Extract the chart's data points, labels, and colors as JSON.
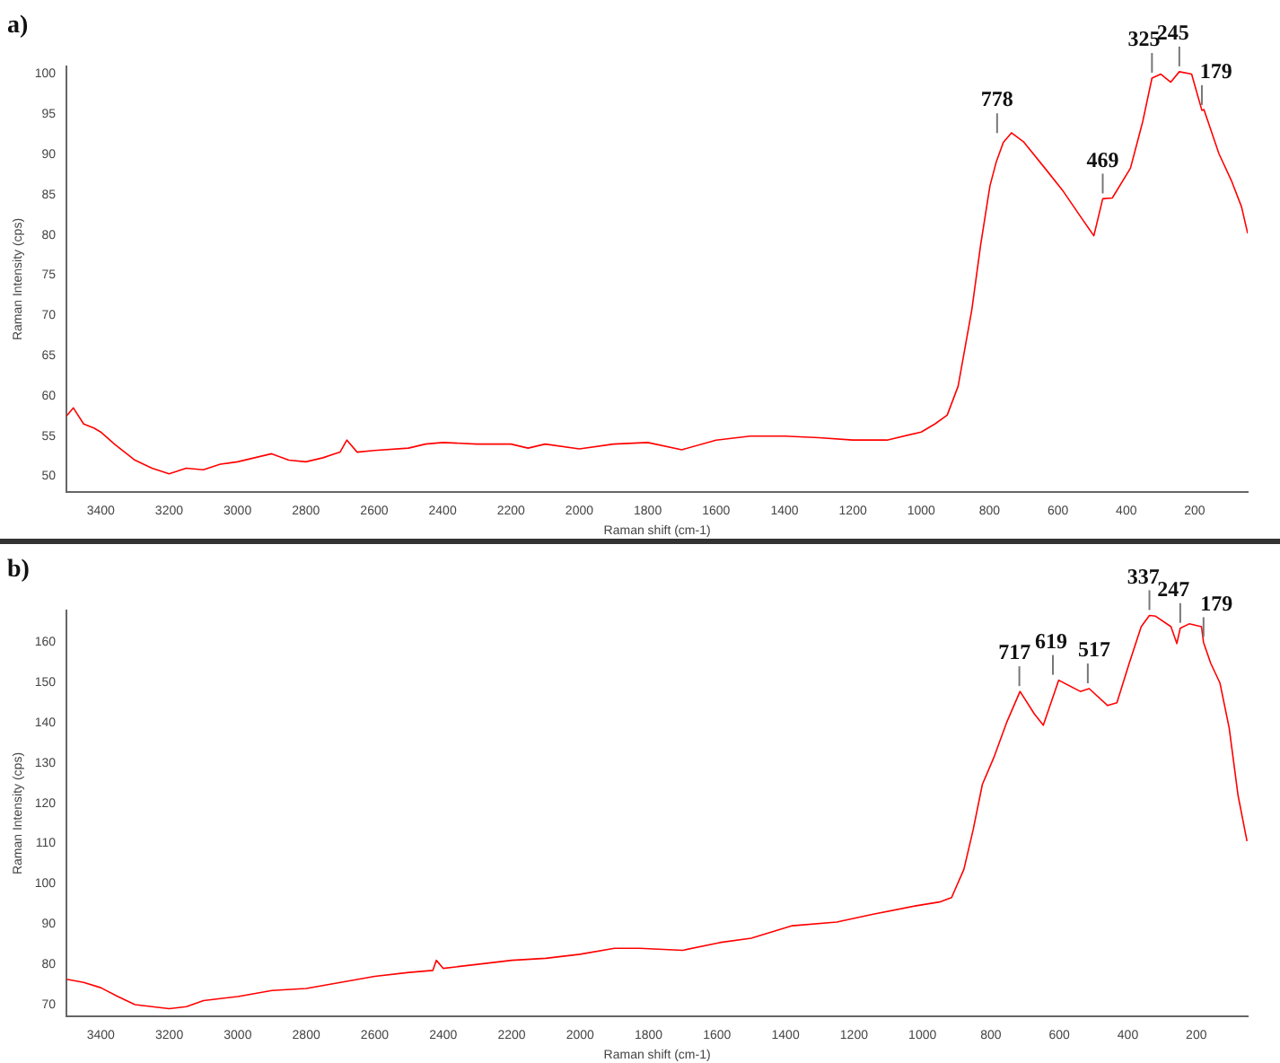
{
  "chart_data": [
    {
      "type": "line",
      "title": "a)",
      "xlabel": "Raman shift (cm-1)",
      "ylabel": "Raman Intensity (cps)",
      "color": "#ff0000",
      "marker": "none",
      "x": [
        3500,
        3480,
        3450,
        3420,
        3400,
        3360,
        3330,
        3300,
        3250,
        3200,
        3150,
        3100,
        3050,
        3000,
        2950,
        2900,
        2850,
        2800,
        2750,
        2700,
        2680,
        2650,
        2600,
        2500,
        2450,
        2400,
        2300,
        2200,
        2150,
        2100,
        2000,
        1900,
        1800,
        1700,
        1600,
        1500,
        1400,
        1300,
        1200,
        1100,
        1000,
        960,
        924,
        892,
        852,
        826,
        799,
        781,
        760,
        736,
        701,
        638,
        584,
        531,
        495,
        469,
        441,
        388,
        352,
        325,
        299,
        270,
        245,
        209,
        179,
        173,
        129,
        93,
        63,
        45
      ],
      "values": [
        57.5,
        58.5,
        56.5,
        56,
        55.5,
        54,
        53,
        52,
        51,
        50.3,
        51,
        50.8,
        51.5,
        51.8,
        52.3,
        52.8,
        52,
        51.8,
        52.3,
        53,
        54.5,
        53,
        53.2,
        53.5,
        54,
        54.2,
        54,
        54,
        53.5,
        54,
        53.4,
        54,
        54.2,
        53.3,
        54.5,
        55,
        55,
        54.8,
        54.5,
        54.5,
        55.5,
        56.5,
        57.6,
        61.2,
        70.7,
        78.8,
        86.1,
        89,
        91.5,
        92.7,
        91.6,
        88.3,
        85.4,
        82.1,
        79.9,
        84.5,
        84.6,
        88.3,
        94.1,
        99.5,
        100,
        99,
        100.3,
        100,
        95.5,
        95.6,
        90.1,
        86.8,
        83.5,
        80.2
      ],
      "xlim": [
        3500,
        45
      ],
      "ylim": [
        48,
        101
      ],
      "xticks": [
        3400,
        3200,
        3000,
        2800,
        2600,
        2400,
        2200,
        2000,
        1800,
        1600,
        1400,
        1200,
        1000,
        800,
        600,
        400,
        200
      ],
      "yticks": [
        50,
        55,
        60,
        65,
        70,
        75,
        80,
        85,
        90,
        95,
        100
      ],
      "annotations": [
        {
          "text": "778",
          "x": 778,
          "y": 92
        },
        {
          "text": "469",
          "x": 469,
          "y": 84.5
        },
        {
          "text": "325",
          "x": 325,
          "y": 99.5
        },
        {
          "text": "245",
          "x": 245,
          "y": 100.3
        },
        {
          "text": "179",
          "x": 179,
          "y": 95.5
        }
      ]
    },
    {
      "type": "line",
      "title": "b)",
      "xlabel": "Raman shift (cm-1)",
      "ylabel": "Raman Intensity (cps)",
      "color": "#ff0000",
      "marker": "none",
      "x": [
        3500,
        3450,
        3400,
        3350,
        3300,
        3250,
        3200,
        3150,
        3100,
        3000,
        2900,
        2800,
        2700,
        2600,
        2500,
        2430,
        2420,
        2400,
        2300,
        2200,
        2100,
        2000,
        1900,
        1826,
        1700,
        1593,
        1500,
        1380,
        1250,
        1147,
        1022,
        950,
        915,
        879,
        852,
        825,
        790,
        754,
        715,
        673,
        647,
        602,
        539,
        513,
        459,
        432,
        396,
        361,
        337,
        319,
        274,
        257,
        247,
        221,
        185,
        179,
        158,
        131,
        104,
        78,
        52
      ],
      "values": [
        76.3,
        75.5,
        74.2,
        72,
        70,
        69.5,
        69,
        69.5,
        71,
        72,
        73.5,
        74,
        75.5,
        77,
        78,
        78.5,
        81,
        79,
        80,
        81,
        81.5,
        82.5,
        84,
        84,
        83.5,
        85.4,
        86.5,
        89.6,
        90.5,
        92.4,
        94.5,
        95.5,
        96.6,
        103.6,
        113.4,
        124.7,
        131.7,
        140.1,
        147.8,
        142.2,
        139.4,
        150.6,
        147.8,
        148.5,
        144.3,
        145,
        154.8,
        163.9,
        166.7,
        166.5,
        163.9,
        159.7,
        163.5,
        164.6,
        163.9,
        160,
        154.8,
        149.9,
        138.7,
        121.9,
        110.6
      ],
      "xlim": [
        3500,
        50
      ],
      "ylim": [
        67,
        168
      ],
      "xticks": [
        3400,
        3200,
        3000,
        2800,
        2600,
        2400,
        2200,
        2000,
        1800,
        1600,
        1400,
        1200,
        1000,
        800,
        600,
        400,
        200
      ],
      "yticks": [
        70,
        80,
        90,
        100,
        110,
        120,
        130,
        140,
        150,
        160
      ],
      "annotations": [
        {
          "text": "717",
          "x": 717,
          "y": 147.8
        },
        {
          "text": "619",
          "x": 619,
          "y": 150.6
        },
        {
          "text": "517",
          "x": 517,
          "y": 148.5
        },
        {
          "text": "337",
          "x": 337,
          "y": 166.7
        },
        {
          "text": "247",
          "x": 247,
          "y": 163.5
        },
        {
          "text": "179",
          "x": 179,
          "y": 160
        }
      ]
    }
  ]
}
